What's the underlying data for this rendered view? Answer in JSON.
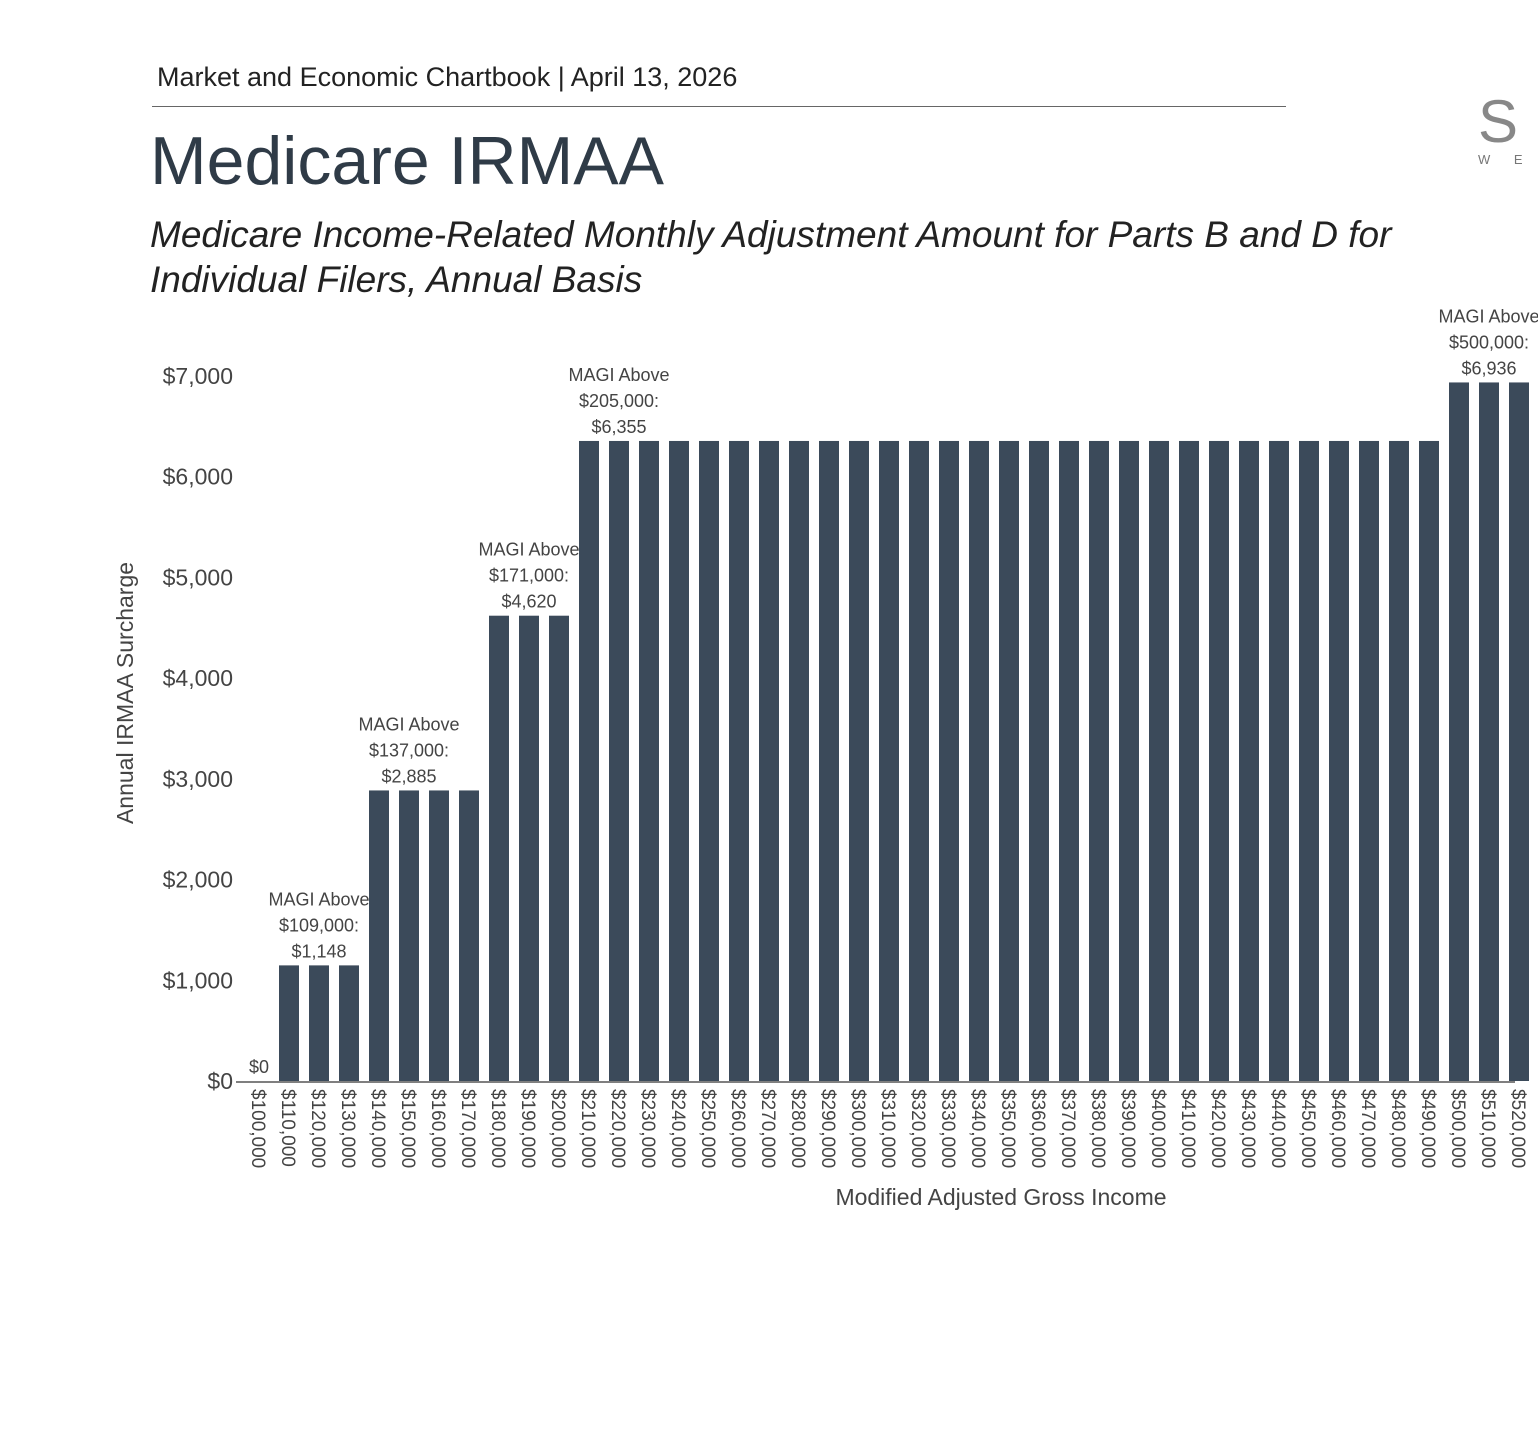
{
  "header": {
    "text": "Market and Economic Chartbook | April 13, 2026"
  },
  "logo": {
    "letters": "S",
    "tagline": "WE"
  },
  "chart_data": {
    "type": "bar",
    "title": "Medicare IRMAA",
    "subtitle": "Medicare Income-Related Monthly Adjustment Amount for Parts B and D for Individual Filers, Annual Basis",
    "xlabel": "Modified Adjusted Gross Income",
    "ylabel": "Annual IRMAA Surcharge",
    "ylim": [
      0,
      7000
    ],
    "yticks": [
      "$0",
      "$1,000",
      "$2,000",
      "$3,000",
      "$4,000",
      "$5,000",
      "$6,000",
      "$7,000"
    ],
    "categories": [
      "$100,000",
      "$110,000",
      "$120,000",
      "$130,000",
      "$140,000",
      "$150,000",
      "$160,000",
      "$170,000",
      "$180,000",
      "$190,000",
      "$200,000",
      "$210,000",
      "$220,000",
      "$230,000",
      "$240,000",
      "$250,000",
      "$260,000",
      "$270,000",
      "$280,000",
      "$290,000",
      "$300,000",
      "$310,000",
      "$320,000",
      "$330,000",
      "$340,000",
      "$350,000",
      "$360,000",
      "$370,000",
      "$380,000",
      "$390,000",
      "$400,000",
      "$410,000",
      "$420,000",
      "$430,000",
      "$440,000",
      "$450,000",
      "$460,000",
      "$470,000",
      "$480,000",
      "$490,000",
      "$500,000",
      "$510,000",
      "$520,000"
    ],
    "values": [
      0,
      1148,
      1148,
      1148,
      2885,
      2885,
      2885,
      2885,
      4620,
      4620,
      4620,
      6355,
      6355,
      6355,
      6355,
      6355,
      6355,
      6355,
      6355,
      6355,
      6355,
      6355,
      6355,
      6355,
      6355,
      6355,
      6355,
      6355,
      6355,
      6355,
      6355,
      6355,
      6355,
      6355,
      6355,
      6355,
      6355,
      6355,
      6355,
      6355,
      6936,
      6936,
      6936
    ],
    "bar_color": "#3b4a5a",
    "grid": false,
    "annotations": [
      {
        "index": 0,
        "lines": [
          "$0"
        ]
      },
      {
        "index": 1,
        "lines": [
          "MAGI Above",
          "$109,000:",
          "$1,148"
        ]
      },
      {
        "index": 4,
        "lines": [
          "MAGI Above",
          "$137,000:",
          "$2,885"
        ]
      },
      {
        "index": 8,
        "lines": [
          "MAGI Above",
          "$171,000:",
          "$4,620"
        ]
      },
      {
        "index": 11,
        "lines": [
          "MAGI Above",
          "$205,000:",
          "$6,355"
        ]
      },
      {
        "index": 40,
        "lines": [
          "MAGI Above",
          "$500,000:",
          "$6,936"
        ]
      }
    ]
  }
}
